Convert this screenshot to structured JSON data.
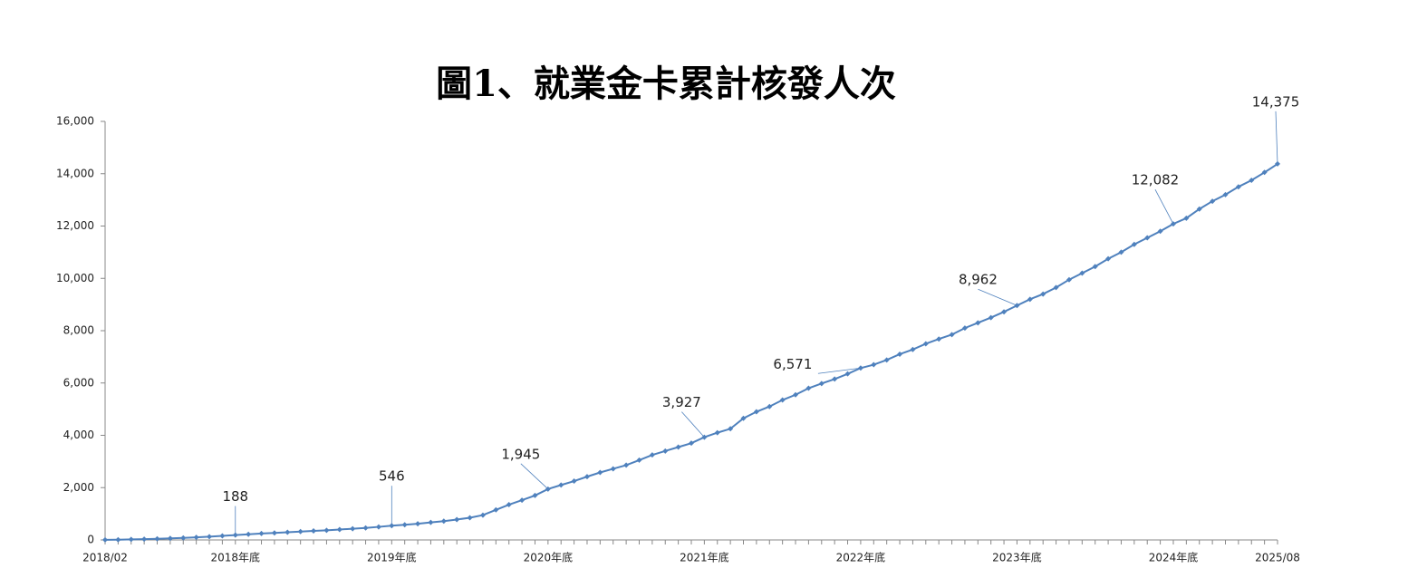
{
  "chart_data": {
    "type": "line",
    "title": "圖1、就業金卡累計核發人次",
    "categories": [
      "2018/02",
      null,
      null,
      null,
      null,
      null,
      null,
      null,
      null,
      null,
      "2018年底",
      null,
      null,
      null,
      null,
      null,
      null,
      null,
      null,
      null,
      null,
      null,
      "2019年底",
      null,
      null,
      null,
      null,
      null,
      null,
      null,
      null,
      null,
      null,
      null,
      "2020年底",
      null,
      null,
      null,
      null,
      null,
      null,
      null,
      null,
      null,
      null,
      null,
      "2021年底",
      null,
      null,
      null,
      null,
      null,
      null,
      null,
      null,
      null,
      null,
      null,
      "2022年底",
      null,
      null,
      null,
      null,
      null,
      null,
      null,
      null,
      null,
      null,
      null,
      "2023年底",
      null,
      null,
      null,
      null,
      null,
      null,
      null,
      null,
      null,
      null,
      null,
      "2024年底",
      null,
      null,
      null,
      null,
      null,
      null,
      null,
      "2025/08"
    ],
    "series": [
      {
        "name": "就業金卡累計核發人次",
        "color": "#4f81bd",
        "values": [
          5,
          10,
          20,
          30,
          45,
          60,
          80,
          100,
          125,
          155,
          188,
          215,
          245,
          270,
          295,
          320,
          345,
          370,
          400,
          430,
          460,
          500,
          546,
          580,
          620,
          670,
          720,
          780,
          850,
          950,
          1150,
          1350,
          1520,
          1700,
          1945,
          2100,
          2250,
          2420,
          2580,
          2720,
          2860,
          3050,
          3250,
          3400,
          3550,
          3700,
          3927,
          4100,
          4250,
          4650,
          4900,
          5100,
          5350,
          5550,
          5800,
          5980,
          6150,
          6350,
          6571,
          6700,
          6880,
          7100,
          7280,
          7500,
          7680,
          7850,
          8100,
          8300,
          8500,
          8720,
          8962,
          9200,
          9400,
          9650,
          9950,
          10200,
          10450,
          10750,
          11000,
          11300,
          11550,
          11800,
          12082,
          12300,
          12650,
          12950,
          13200,
          13500,
          13750,
          14050,
          14375
        ],
        "value_labels": [
          null,
          null,
          null,
          null,
          null,
          null,
          null,
          null,
          null,
          null,
          "188",
          null,
          null,
          null,
          null,
          null,
          null,
          null,
          null,
          null,
          null,
          null,
          "546",
          null,
          null,
          null,
          null,
          null,
          null,
          null,
          null,
          null,
          null,
          null,
          "1,945",
          null,
          null,
          null,
          null,
          null,
          null,
          null,
          null,
          null,
          null,
          null,
          "3,927",
          null,
          null,
          null,
          null,
          null,
          null,
          null,
          null,
          null,
          null,
          null,
          "6,571",
          null,
          null,
          null,
          null,
          null,
          null,
          null,
          null,
          null,
          null,
          null,
          "8,962",
          null,
          null,
          null,
          null,
          null,
          null,
          null,
          null,
          null,
          null,
          null,
          "12,082",
          null,
          null,
          null,
          null,
          null,
          null,
          null,
          "14,375"
        ]
      }
    ],
    "ylim": [
      0,
      16000
    ],
    "yticks": [
      0,
      {
        "value": 2000,
        "label": "2,000"
      },
      {
        "value": 4000,
        "label": "4,000"
      },
      {
        "value": 6000,
        "label": "6,000"
      },
      {
        "value": 8000,
        "label": "8,000"
      },
      {
        "value": 10000,
        "label": "10,000"
      },
      {
        "value": 12000,
        "label": "12,000"
      },
      {
        "value": 14000,
        "label": "14,000"
      },
      {
        "value": 16000,
        "label": "16,000"
      }
    ],
    "grid": false
  }
}
